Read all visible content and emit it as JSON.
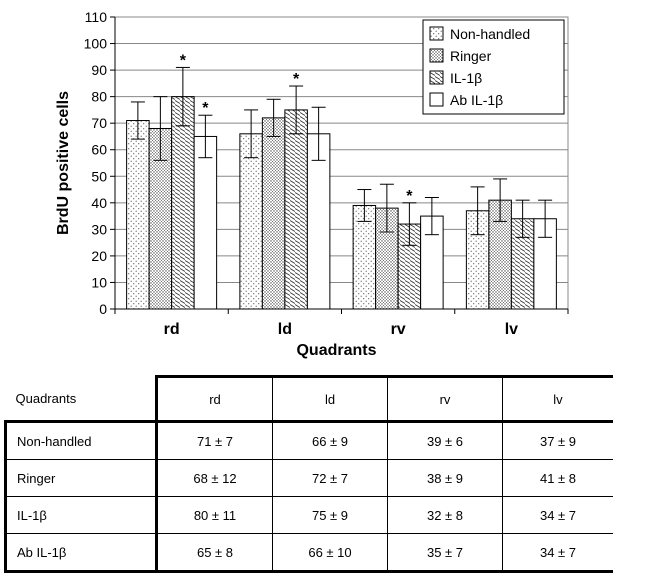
{
  "chart_data": {
    "type": "bar",
    "ylabel": "BrdU positive cells",
    "xlabel": "Quadrants",
    "ylim": [
      0,
      110
    ],
    "yticks": [
      0,
      10,
      20,
      30,
      40,
      50,
      60,
      70,
      80,
      90,
      100,
      110
    ],
    "categories": [
      "rd",
      "ld",
      "rv",
      "lv"
    ],
    "legend_position": "top-right",
    "series": [
      {
        "name": "Non-handled",
        "values": [
          71,
          66,
          39,
          37
        ],
        "errors": [
          7,
          9,
          6,
          9
        ],
        "pattern": "dots",
        "significant": [
          false,
          false,
          false,
          false
        ]
      },
      {
        "name": "Ringer",
        "values": [
          68,
          72,
          38,
          41
        ],
        "errors": [
          12,
          7,
          9,
          8
        ],
        "pattern": "dense-dots",
        "significant": [
          false,
          false,
          false,
          false
        ]
      },
      {
        "name": "IL-1β",
        "values": [
          80,
          75,
          32,
          34
        ],
        "errors": [
          11,
          9,
          8,
          7
        ],
        "pattern": "diagonal",
        "significant": [
          true,
          true,
          true,
          false
        ]
      },
      {
        "name": "Ab IL-1β",
        "values": [
          65,
          66,
          35,
          34
        ],
        "errors": [
          8,
          10,
          7,
          7
        ],
        "pattern": "white",
        "significant": [
          true,
          false,
          false,
          false
        ]
      }
    ],
    "significance_marker": "*"
  },
  "table": {
    "header": {
      "label": "Quadrants",
      "cols": [
        "rd",
        "ld",
        "rv",
        "lv"
      ]
    },
    "rows": [
      {
        "label": "Non-handled",
        "cells": [
          "71 ± 7",
          "66 ± 9",
          "39 ± 6",
          "37 ± 9"
        ]
      },
      {
        "label": "Ringer",
        "cells": [
          "68 ± 12",
          "72 ± 7",
          "38 ± 9",
          "41 ± 8"
        ]
      },
      {
        "label": "IL-1β",
        "cells": [
          "80 ± 11",
          "75 ± 9",
          "32 ± 8",
          "34 ± 7"
        ]
      },
      {
        "label": "Ab IL-1β",
        "cells": [
          "65 ± 8",
          "66 ± 10",
          "35 ± 7",
          "34 ± 7"
        ]
      }
    ]
  }
}
